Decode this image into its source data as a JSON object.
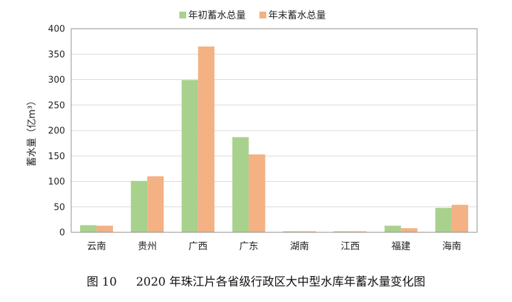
{
  "caption": {
    "figure_number": "图 10",
    "title": "2020 年珠江片各省级行政区大中型水库年蓄水量变化图"
  },
  "chart_data": {
    "type": "bar",
    "title": "",
    "xlabel": "",
    "ylabel": "蓄水量（亿m³）",
    "ylim": [
      0,
      400
    ],
    "yticks": [
      0,
      50,
      100,
      150,
      200,
      250,
      300,
      350,
      400
    ],
    "grid": true,
    "legend_position": "top-center",
    "categories": [
      "云南",
      "贵州",
      "广西",
      "广东",
      "湖南",
      "江西",
      "福建",
      "海南"
    ],
    "series": [
      {
        "name": "年初蓄水总量",
        "color": "#a9d18e",
        "values": [
          14,
          101,
          299,
          187,
          2,
          2,
          13,
          48
        ]
      },
      {
        "name": "年末蓄水总量",
        "color": "#f4b183",
        "values": [
          13,
          110,
          365,
          153,
          2,
          2,
          8,
          54
        ]
      }
    ]
  }
}
